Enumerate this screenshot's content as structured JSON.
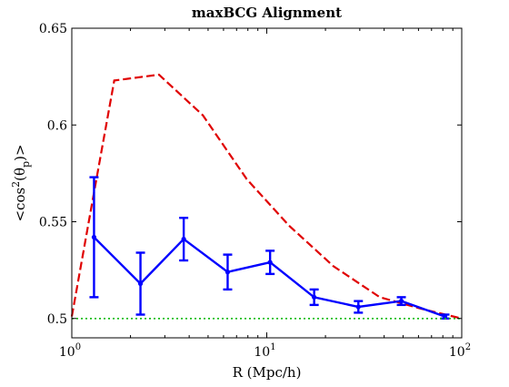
{
  "chart_data": {
    "type": "line",
    "title": "maxBCG Alignment",
    "xlabel": "R (Mpc/h)",
    "ylabel": {
      "main": "<cos",
      "sup": "2",
      "mid": "(θ",
      "sub": "p",
      "end": ")>"
    },
    "x_scale": "log",
    "xlim": [
      1,
      100
    ],
    "ylim": [
      0.49,
      0.65
    ],
    "x_ticks": [
      {
        "base": "10",
        "exp": "0"
      },
      {
        "base": "10",
        "exp": "1"
      },
      {
        "base": "10",
        "exp": "2"
      }
    ],
    "y_ticks": [
      "0.5",
      "0.55",
      "0.6",
      "0.65"
    ],
    "grid": false,
    "series": [
      {
        "style": "dashed",
        "color": "#e00000",
        "x": [
          1.0,
          1.3,
          1.65,
          2.8,
          4.7,
          7.9,
          13,
          22,
          38,
          62,
          100
        ],
        "y": [
          0.501,
          0.565,
          0.623,
          0.626,
          0.605,
          0.572,
          0.548,
          0.527,
          0.511,
          0.505,
          0.5
        ]
      },
      {
        "style": "solid-errorbar",
        "color": "#0000ff",
        "x": [
          1.3,
          2.25,
          3.75,
          6.3,
          10.4,
          17.5,
          29.5,
          49,
          82
        ],
        "y": [
          0.542,
          0.518,
          0.541,
          0.524,
          0.529,
          0.511,
          0.506,
          0.509,
          0.501
        ],
        "yerr": [
          0.031,
          0.016,
          0.011,
          0.009,
          0.006,
          0.004,
          0.003,
          0.002,
          0.001
        ]
      },
      {
        "style": "dotted",
        "color": "#00bb00",
        "x": [
          1,
          100
        ],
        "y": [
          0.5,
          0.5
        ]
      }
    ]
  }
}
